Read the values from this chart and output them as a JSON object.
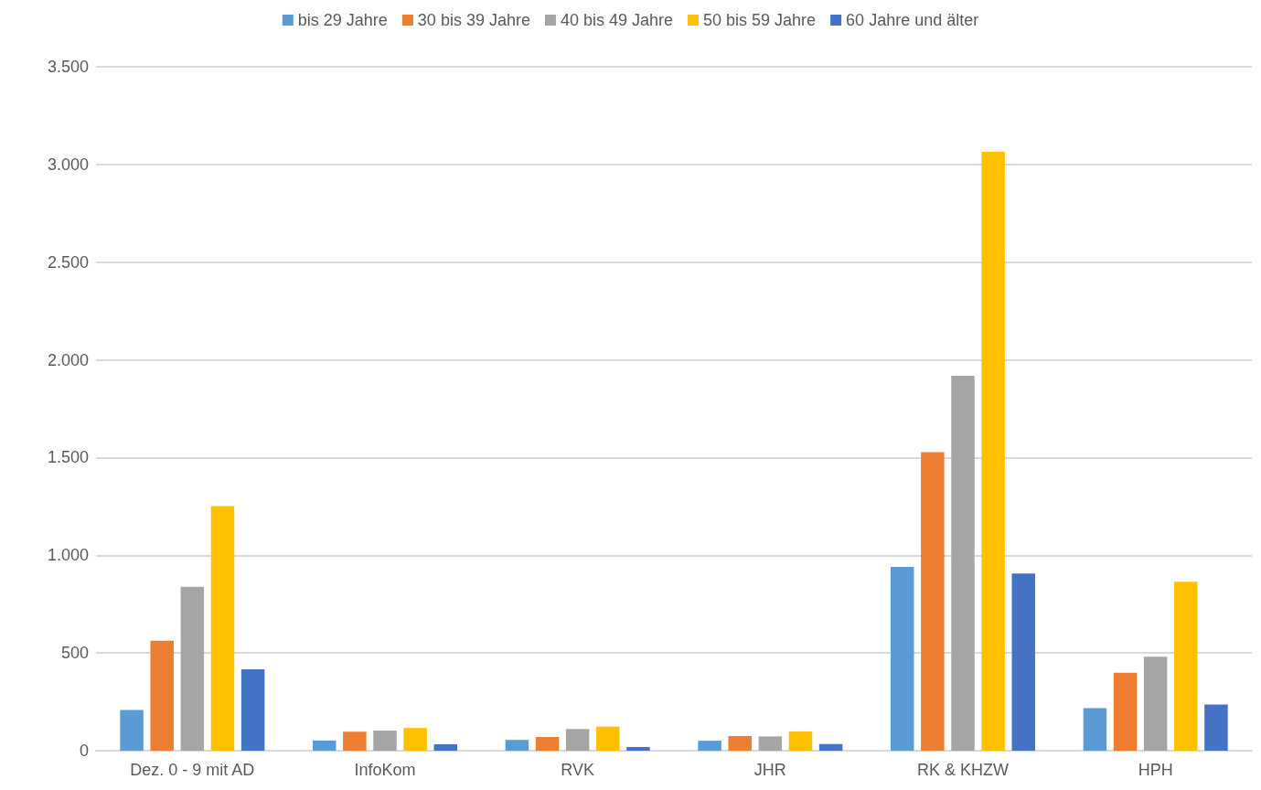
{
  "chart_data": {
    "type": "bar",
    "categories": [
      "Dez. 0 - 9 mit AD",
      "InfoKom",
      "RVK",
      "JHR",
      "RK & KHZW",
      "HPH"
    ],
    "series": [
      {
        "name": "bis 29 Jahre",
        "color": "#5b9bd5",
        "values": [
          208,
          52,
          55,
          51,
          940,
          218
        ]
      },
      {
        "name": "30 bis 39 Jahre",
        "color": "#ed7d31",
        "values": [
          563,
          97,
          70,
          75,
          1528,
          399
        ]
      },
      {
        "name": "40 bis 49 Jahre",
        "color": "#a5a5a5",
        "values": [
          839,
          103,
          111,
          73,
          1918,
          481
        ]
      },
      {
        "name": "50 bis 59 Jahre",
        "color": "#ffc000",
        "values": [
          1252,
          116,
          123,
          98,
          3065,
          865
        ]
      },
      {
        "name": "60 Jahre und älter",
        "color": "#4472c4",
        "values": [
          416,
          33,
          19,
          34,
          906,
          236
        ]
      }
    ],
    "ylim": [
      0,
      3500
    ],
    "yticks": [
      0,
      500,
      {
        "value": 1000,
        "label": "1.000"
      },
      {
        "value": 1500,
        "label": "1.500"
      },
      {
        "value": 2000,
        "label": "2.000"
      },
      {
        "value": 2500,
        "label": "2.500"
      },
      {
        "value": 3000,
        "label": "3.000"
      },
      {
        "value": 3500,
        "label": "3.500"
      }
    ],
    "grid": "y",
    "legend": "top"
  }
}
